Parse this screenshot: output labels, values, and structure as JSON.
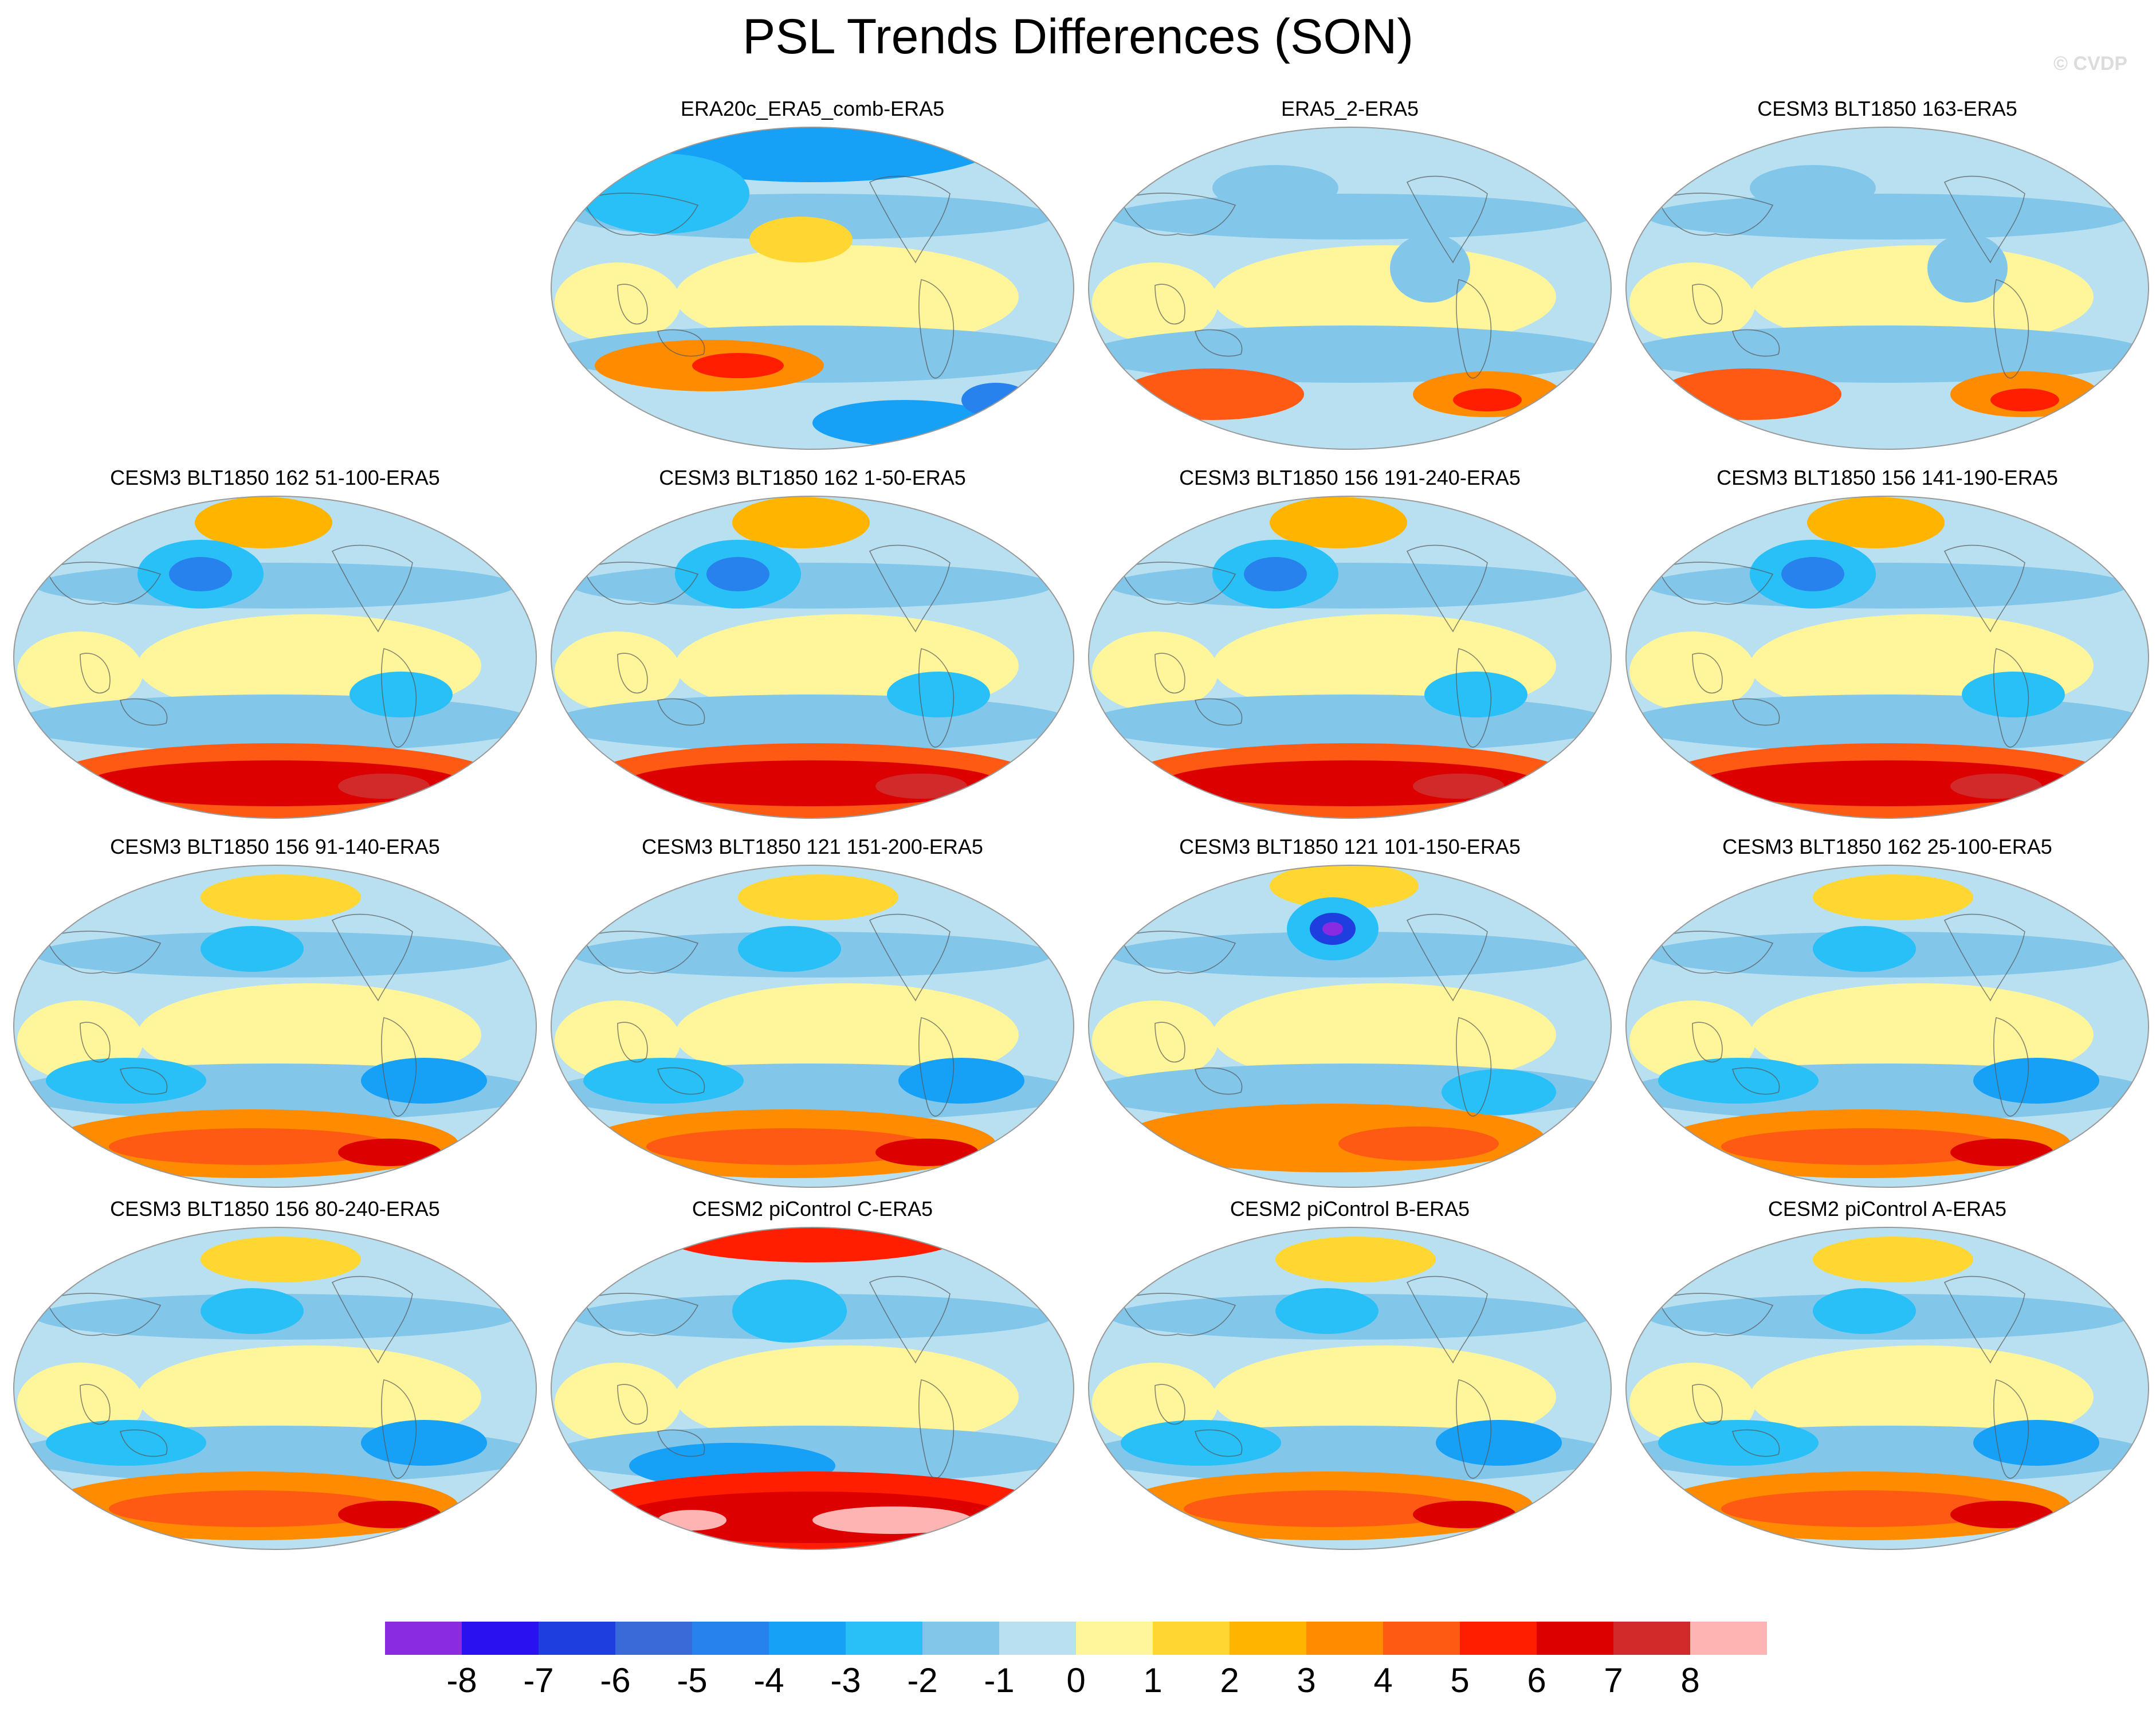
{
  "figure": {
    "title": "PSL Trends Differences (SON)",
    "credit": "© CVDP"
  },
  "panels": [
    {
      "label": "ERA20c_ERA5_comb-ERA5",
      "anomaly": "polar-negative"
    },
    {
      "label": "ERA5_2-ERA5",
      "anomaly": "mild"
    },
    {
      "label": "CESM3 BLT1850 163-ERA5",
      "anomaly": "mild"
    },
    {
      "label": "CESM3 BLT1850 162 51-100-ERA5",
      "anomaly": "strong-south"
    },
    {
      "label": "CESM3 BLT1850 162 1-50-ERA5",
      "anomaly": "strong-south"
    },
    {
      "label": "CESM3 BLT1850 156 191-240-ERA5",
      "anomaly": "strong-south"
    },
    {
      "label": "CESM3 BLT1850 156 141-190-ERA5",
      "anomaly": "strong-south"
    },
    {
      "label": "CESM3 BLT1850 156 91-140-ERA5",
      "anomaly": "south"
    },
    {
      "label": "CESM3 BLT1850 121 151-200-ERA5",
      "anomaly": "south"
    },
    {
      "label": "CESM3 BLT1850 121 101-150-ERA5",
      "anomaly": "north-low"
    },
    {
      "label": "CESM3 BLT1850 162 25-100-ERA5",
      "anomaly": "south"
    },
    {
      "label": "CESM3 BLT1850 156 80-240-ERA5",
      "anomaly": "south"
    },
    {
      "label": "CESM2 piControl C-ERA5",
      "anomaly": "very-strong-south"
    },
    {
      "label": "CESM2 piControl B-ERA5",
      "anomaly": "south"
    },
    {
      "label": "CESM2 piControl A-ERA5",
      "anomaly": "south"
    }
  ],
  "colorbar": {
    "ticks": [
      "-8",
      "-7",
      "-6",
      "-5",
      "-4",
      "-3",
      "-2",
      "-1",
      "0",
      "1",
      "2",
      "3",
      "4",
      "5",
      "6",
      "7",
      "8"
    ],
    "colors": [
      "#8a2be2",
      "#2a12f0",
      "#1e3ee0",
      "#3a6ad8",
      "#2882ee",
      "#16a0f6",
      "#28c0f6",
      "#82c6ea",
      "#b8e0f0",
      "#fff59a",
      "#ffd632",
      "#ffb400",
      "#ff8c00",
      "#ff5a14",
      "#ff1e00",
      "#dc0000",
      "#d22a2a",
      "#ffb4b4"
    ]
  }
}
